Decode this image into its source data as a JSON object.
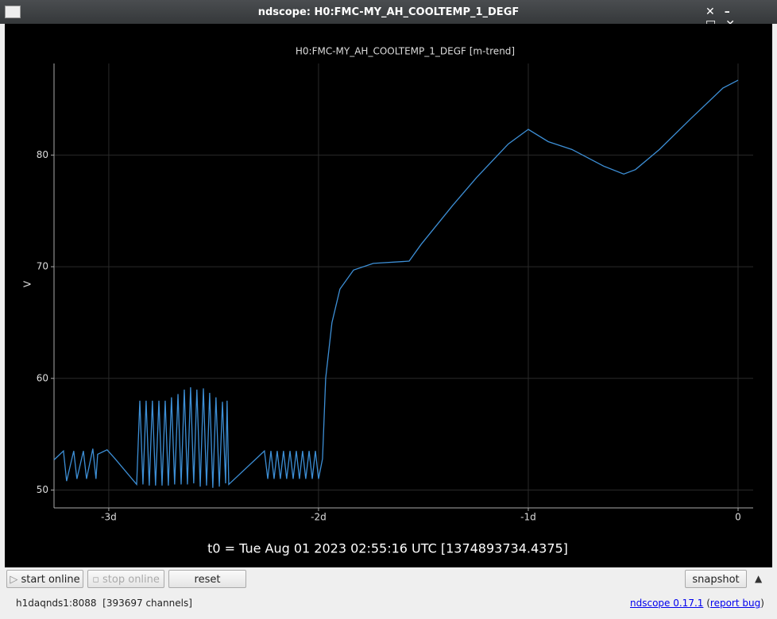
{
  "window_title": "ndscope: H0:FMC-MY_AH_COOLTEMP_1_DEGF",
  "chart_data": {
    "type": "line",
    "title": "H0:FMC-MY_AH_COOLTEMP_1_DEGF [m-trend]",
    "y_label": "V",
    "x": [
      -3.261,
      -3.216,
      -3.201,
      -3.167,
      -3.152,
      -3.121,
      -3.106,
      -3.076,
      -3.061,
      -3.053,
      -3.008,
      -2.97,
      -2.867,
      -2.852,
      -2.837,
      -2.822,
      -2.807,
      -2.792,
      -2.777,
      -2.761,
      -2.746,
      -2.731,
      -2.716,
      -2.701,
      -2.686,
      -2.67,
      -2.655,
      -2.64,
      -2.625,
      -2.61,
      -2.595,
      -2.58,
      -2.564,
      -2.549,
      -2.534,
      -2.519,
      -2.504,
      -2.489,
      -2.473,
      -2.458,
      -2.443,
      -2.436,
      -2.428,
      -2.258,
      -2.242,
      -2.227,
      -2.212,
      -2.197,
      -2.182,
      -2.167,
      -2.152,
      -2.136,
      -2.121,
      -2.106,
      -2.091,
      -2.076,
      -2.061,
      -2.045,
      -2.03,
      -2.015,
      -2.0,
      -1.981,
      -1.966,
      -1.936,
      -1.898,
      -1.833,
      -1.739,
      -1.568,
      -1.511,
      -1.36,
      -1.246,
      -1.095,
      -1.0,
      -0.905,
      -0.792,
      -0.64,
      -0.545,
      -0.489,
      -0.375,
      -0.223,
      -0.072,
      0
    ],
    "series": [
      {
        "color": "#3d8fd6",
        "values": [
          52.7,
          53.5,
          50.8,
          53.5,
          51.0,
          53.5,
          51.0,
          53.7,
          51.0,
          53.2,
          53.6,
          52.8,
          50.5,
          58.0,
          50.5,
          58.0,
          50.4,
          58.0,
          50.4,
          58.0,
          50.4,
          58.0,
          50.4,
          58.3,
          50.5,
          58.6,
          50.5,
          59.0,
          50.5,
          59.2,
          50.6,
          59.0,
          50.3,
          59.1,
          50.4,
          58.7,
          50.2,
          58.3,
          50.3,
          57.9,
          50.6,
          58.0,
          50.5,
          53.5,
          51.0,
          53.5,
          51.0,
          53.5,
          51.0,
          53.5,
          51.0,
          53.5,
          51.0,
          53.5,
          51.0,
          53.5,
          51.0,
          53.5,
          51.0,
          53.5,
          51.0,
          52.8,
          60,
          65,
          68,
          69.7,
          70.3,
          70.5,
          72,
          75.5,
          78,
          81,
          82.3,
          81.2,
          80.5,
          79,
          78.3,
          78.7,
          80.5,
          83.3,
          86,
          86.7
        ]
      }
    ],
    "xlim": [
      -3.261,
      0.072
    ],
    "ylim": [
      48.4,
      88.2
    ],
    "xticks": [
      {
        "value": -3,
        "label": "-3d"
      },
      {
        "value": -2,
        "label": "-2d"
      },
      {
        "value": -1,
        "label": "-1d"
      },
      0
    ],
    "yticks": [
      50,
      60,
      70,
      80
    ],
    "grid": true
  },
  "t0_label": "t0 = Tue Aug 01 2023 02:55:16 UTC [1374893734.4375]",
  "toolbar": {
    "start": "start online",
    "stop": "stop online",
    "reset": "reset",
    "snapshot": "snapshot"
  },
  "status": {
    "server": "h1daqnds1:8088  [393697 channels]",
    "version": "ndscope 0.17.1",
    "open": "(",
    "report": "report bug",
    "close": ")"
  }
}
